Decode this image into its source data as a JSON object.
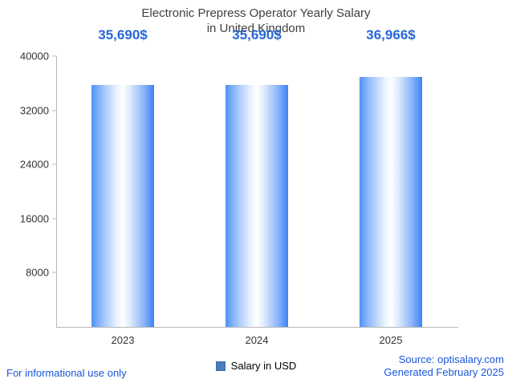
{
  "title": {
    "line1": "Electronic Prepress Operator Yearly Salary",
    "line2": "in United Kingdom"
  },
  "chart_data": {
    "type": "bar",
    "title": "Electronic Prepress Operator Yearly Salary in United Kingdom",
    "categories": [
      "2023",
      "2024",
      "2025"
    ],
    "values": [
      35690,
      35690,
      36966
    ],
    "value_labels": [
      "35,690$",
      "35,690$",
      "36,966$"
    ],
    "xlabel": "",
    "ylabel": "",
    "ylim": [
      0,
      40000
    ],
    "yticks": [
      40000,
      32000,
      24000,
      16000,
      8000
    ],
    "grid": false,
    "legend": {
      "position": "bottom",
      "entries": [
        {
          "label": "Salary in USD",
          "color": "#4a7ebb"
        }
      ]
    },
    "bar_style": {
      "gradient_left": "#4e92f7",
      "gradient_center": "#ffffff",
      "gradient_right": "#3d83f5"
    }
  },
  "footer": {
    "left": "For informational use only",
    "source": "Source: optisalary.com",
    "generated": "Generated February 2025"
  },
  "colors": {
    "value_label_text": "#2667d9",
    "footer_text": "#1a56db",
    "axis": "#b8b8b8",
    "title_text": "#404040"
  }
}
